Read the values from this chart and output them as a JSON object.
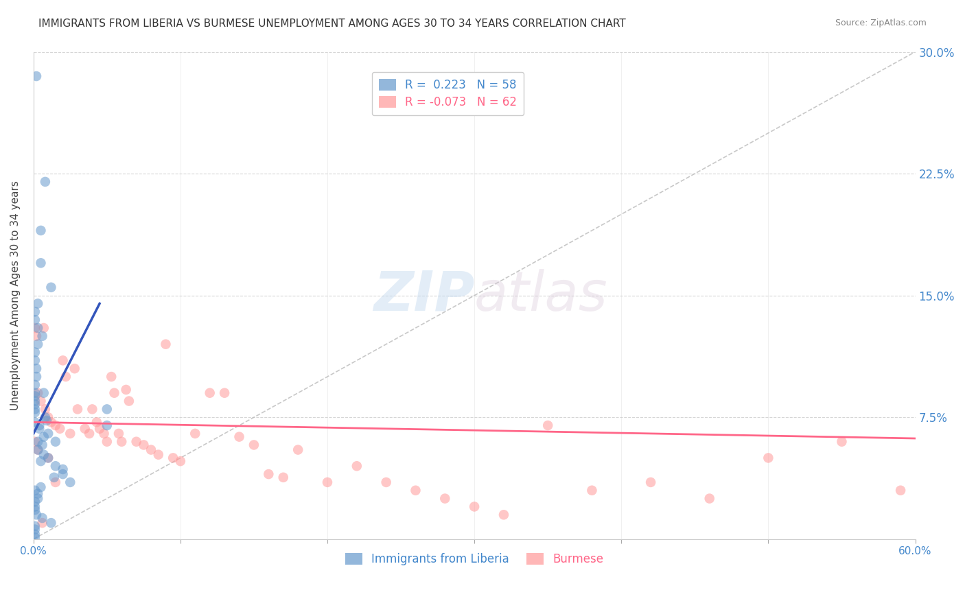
{
  "title": "IMMIGRANTS FROM LIBERIA VS BURMESE UNEMPLOYMENT AMONG AGES 30 TO 34 YEARS CORRELATION CHART",
  "source": "Source: ZipAtlas.com",
  "ylabel": "Unemployment Among Ages 30 to 34 years",
  "xlim": [
    0.0,
    0.6
  ],
  "ylim": [
    0.0,
    0.3
  ],
  "legend_R1": "R =  0.223",
  "legend_N1": "N = 58",
  "legend_R2": "R = -0.073",
  "legend_N2": "N = 62",
  "legend_label1": "Immigrants from Liberia",
  "legend_label2": "Burmese",
  "blue_color": "#6699CC",
  "pink_color": "#FF9999",
  "blue_line_color": "#3355BB",
  "pink_line_color": "#FF6688",
  "axis_color": "#4488CC",
  "blue_scatter_x": [
    0.002,
    0.008,
    0.005,
    0.005,
    0.003,
    0.001,
    0.001,
    0.003,
    0.006,
    0.003,
    0.001,
    0.001,
    0.002,
    0.002,
    0.001,
    0.001,
    0.001,
    0.001,
    0.001,
    0.001,
    0.001,
    0.008,
    0.009,
    0.004,
    0.004,
    0.01,
    0.007,
    0.003,
    0.006,
    0.003,
    0.007,
    0.01,
    0.005,
    0.015,
    0.02,
    0.02,
    0.014,
    0.025,
    0.005,
    0.001,
    0.003,
    0.003,
    0.001,
    0.001,
    0.001,
    0.002,
    0.006,
    0.012,
    0.001,
    0.001,
    0.001,
    0.001,
    0.05,
    0.05,
    0.015,
    0.007,
    0.012,
    0.001
  ],
  "blue_scatter_y": [
    0.285,
    0.22,
    0.19,
    0.17,
    0.145,
    0.14,
    0.135,
    0.13,
    0.125,
    0.12,
    0.115,
    0.11,
    0.105,
    0.1,
    0.095,
    0.09,
    0.088,
    0.085,
    0.083,
    0.08,
    0.078,
    0.075,
    0.073,
    0.07,
    0.068,
    0.065,
    0.063,
    0.06,
    0.058,
    0.055,
    0.052,
    0.05,
    0.048,
    0.045,
    0.043,
    0.04,
    0.038,
    0.035,
    0.032,
    0.03,
    0.028,
    0.025,
    0.023,
    0.02,
    0.018,
    0.015,
    0.013,
    0.01,
    0.008,
    0.006,
    0.003,
    0.001,
    0.07,
    0.08,
    0.06,
    0.09,
    0.155,
    0.072
  ],
  "pink_scatter_x": [
    0.001,
    0.002,
    0.003,
    0.005,
    0.007,
    0.008,
    0.01,
    0.012,
    0.015,
    0.018,
    0.02,
    0.022,
    0.025,
    0.028,
    0.03,
    0.035,
    0.038,
    0.04,
    0.043,
    0.045,
    0.048,
    0.05,
    0.053,
    0.055,
    0.058,
    0.06,
    0.063,
    0.065,
    0.07,
    0.075,
    0.08,
    0.085,
    0.09,
    0.095,
    0.1,
    0.11,
    0.12,
    0.13,
    0.14,
    0.15,
    0.16,
    0.17,
    0.18,
    0.2,
    0.22,
    0.24,
    0.26,
    0.28,
    0.3,
    0.32,
    0.35,
    0.38,
    0.42,
    0.46,
    0.5,
    0.55,
    0.59,
    0.001,
    0.003,
    0.006,
    0.01,
    0.015
  ],
  "pink_scatter_y": [
    0.13,
    0.125,
    0.09,
    0.085,
    0.13,
    0.08,
    0.075,
    0.072,
    0.07,
    0.068,
    0.11,
    0.1,
    0.065,
    0.105,
    0.08,
    0.068,
    0.065,
    0.08,
    0.072,
    0.068,
    0.065,
    0.06,
    0.1,
    0.09,
    0.065,
    0.06,
    0.092,
    0.085,
    0.06,
    0.058,
    0.055,
    0.052,
    0.12,
    0.05,
    0.048,
    0.065,
    0.09,
    0.09,
    0.063,
    0.058,
    0.04,
    0.038,
    0.055,
    0.035,
    0.045,
    0.035,
    0.03,
    0.025,
    0.02,
    0.015,
    0.07,
    0.03,
    0.035,
    0.025,
    0.05,
    0.06,
    0.03,
    0.06,
    0.055,
    0.01,
    0.05,
    0.035
  ],
  "blue_trend_x": [
    0.0,
    0.045
  ],
  "blue_trend_y": [
    0.065,
    0.145
  ],
  "pink_trend_x": [
    0.0,
    0.6
  ],
  "pink_trend_y": [
    0.072,
    0.062
  ],
  "diag_line_x": [
    0.0,
    0.6
  ],
  "diag_line_y": [
    0.0,
    0.3
  ],
  "watermark_zip": "ZIP",
  "watermark_atlas": "atlas",
  "background_color": "#ffffff",
  "grid_color": "#cccccc",
  "title_fontsize": 11,
  "axis_label_fontsize": 11
}
